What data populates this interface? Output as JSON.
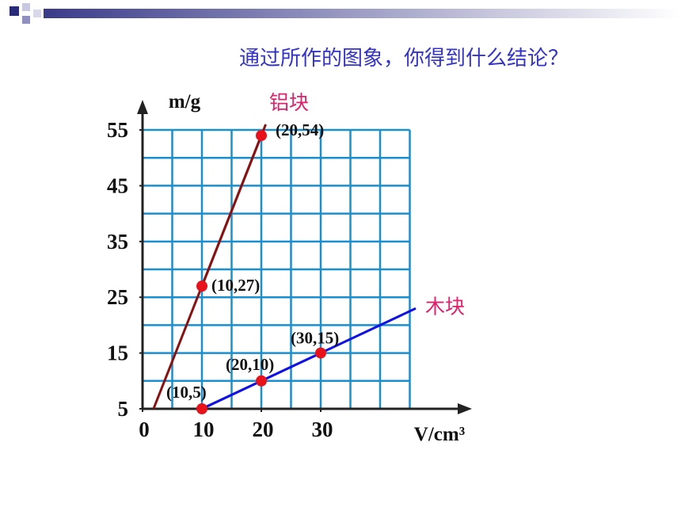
{
  "chart_data": {
    "type": "line",
    "title": "通过所作的图象，你得到什么结论？",
    "y_label": "m/g",
    "x_label": "V/cm³",
    "xlim": [
      0,
      46
    ],
    "ylim": [
      5,
      56
    ],
    "xticks": [
      0,
      10,
      20,
      30
    ],
    "yticks": [
      5,
      15,
      25,
      35,
      45,
      55
    ],
    "grid": true,
    "xgrid": [
      0,
      5,
      10,
      15,
      20,
      25,
      30,
      35,
      40,
      45
    ],
    "ygrid": [
      5,
      10,
      15,
      20,
      25,
      30,
      35,
      40,
      45,
      50,
      55
    ],
    "grid_color": "#1a8fd0",
    "marker_color": "#e8121a",
    "series": [
      {
        "name": "铝块",
        "color": "#8b1010",
        "x": [
          10,
          20
        ],
        "values": [
          27,
          54
        ],
        "value_labels": [
          "(10,27)",
          "(20,54)"
        ]
      },
      {
        "name": "木块",
        "color": "#1010e8",
        "x": [
          10,
          20,
          30
        ],
        "values": [
          5,
          10,
          15
        ],
        "value_labels": [
          "(10,5)",
          "(20,10)",
          "(30,15)"
        ]
      }
    ]
  }
}
